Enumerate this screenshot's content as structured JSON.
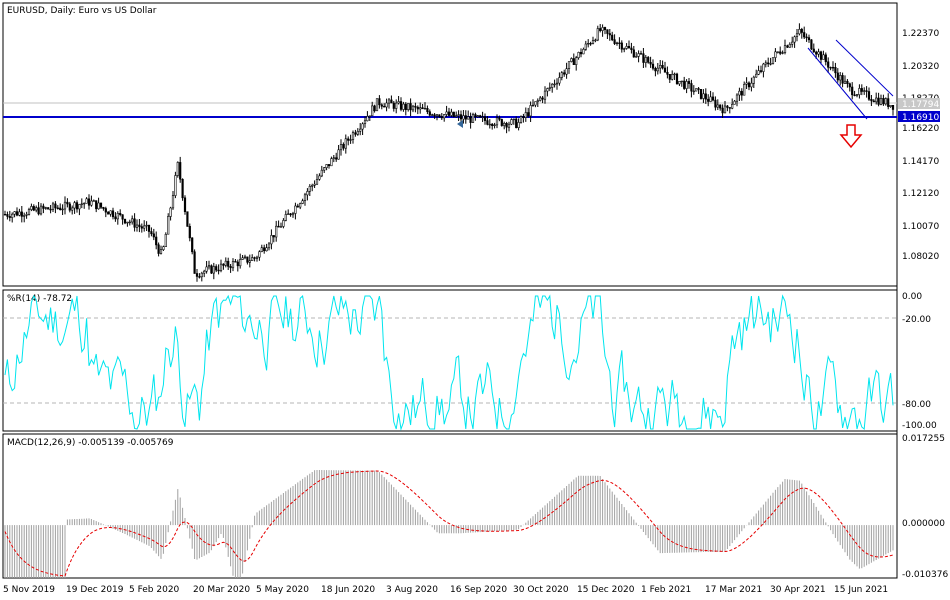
{
  "chart_data": [
    {
      "type": "candlestick",
      "title": "EURUSD, Daily:  Euro vs US Dollar",
      "yticks": [
        "1.22370",
        "1.20320",
        "1.18270",
        "1.16220",
        "1.14170",
        "1.12120",
        "1.10070",
        "1.08020"
      ],
      "ylim": [
        1.062,
        1.2435
      ],
      "current_price": "1.17794",
      "support_level": "1.16910",
      "close_approx": [
        {
          "x": "5 Nov 2019",
          "y": 1.108
        },
        {
          "x": "19 Dec 2019",
          "y": 1.113
        },
        {
          "x": "10 Jan 2020",
          "y": 1.116
        },
        {
          "x": "5 Feb 2020",
          "y": 1.097
        },
        {
          "x": "20 Feb 2020",
          "y": 1.081
        },
        {
          "x": "9 Mar 2020",
          "y": 1.14
        },
        {
          "x": "20 Mar 2020",
          "y": 1.07
        },
        {
          "x": "5 May 2020",
          "y": 1.08
        },
        {
          "x": "18 Jun 2020",
          "y": 1.121
        },
        {
          "x": "3 Aug 2020",
          "y": 1.18
        },
        {
          "x": "16 Sep 2020",
          "y": 1.17
        },
        {
          "x": "30 Oct 2020",
          "y": 1.166
        },
        {
          "x": "15 Dec 2020",
          "y": 1.226
        },
        {
          "x": "1 Feb 2021",
          "y": 1.207
        },
        {
          "x": "17 Mar 2021",
          "y": 1.175
        },
        {
          "x": "30 Apr 2021",
          "y": 1.21
        },
        {
          "x": "25 May 2021",
          "y": 1.225
        },
        {
          "x": "15 Jun 2021",
          "y": 1.188
        },
        {
          "x": "22 Jul 2021",
          "y": 1.178
        }
      ]
    },
    {
      "type": "line",
      "title": "%R(14) -78.72",
      "yticks": [
        "0.00",
        "-20.00",
        "-80.00",
        "-100.00"
      ],
      "ylim": [
        -100,
        0
      ]
    },
    {
      "type": "bar",
      "title": "MACD(12,26,9) -0.005139 -0.005769",
      "yticks": [
        "0.017255",
        "0.000000",
        "-0.010376"
      ],
      "ylim": [
        -0.010376,
        0.017255
      ]
    }
  ],
  "xaxis_dates": [
    "5 Nov 2019",
    "19 Dec 2019",
    "5 Feb 2020",
    "20 Mar 2020",
    "5 May 2020",
    "18 Jun 2020",
    "3 Aug 2020",
    "16 Sep 2020",
    "30 Oct 2020",
    "15 Dec 2020",
    "1 Feb 2021",
    "17 Mar 2021",
    "30 Apr 2021",
    "15 Jun 2021"
  ],
  "colors": {
    "grid": "#c8c8c8",
    "support": "#0000cc",
    "channel": "#0000cc",
    "arrow": "#e60000",
    "wpr": "#00e5ee",
    "signal": "#e60000",
    "histogram": "#a0a0a0"
  }
}
